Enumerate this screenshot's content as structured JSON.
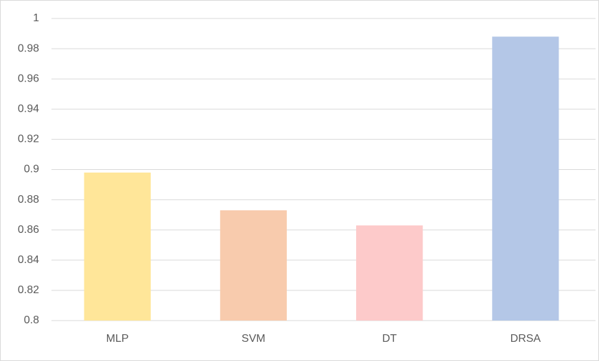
{
  "chart_data": {
    "type": "bar",
    "categories": [
      "MLP",
      "SVM",
      "DT",
      "DRSA"
    ],
    "values": [
      0.898,
      0.873,
      0.863,
      0.988
    ],
    "colors": [
      "#ffe699",
      "#f8cbad",
      "#fdcaca",
      "#b4c7e7"
    ],
    "ylim": [
      0.8,
      1
    ],
    "yticks": [
      0.8,
      0.82,
      0.84,
      0.86,
      0.88,
      0.9,
      0.92,
      0.94,
      0.96,
      0.98,
      1
    ],
    "grid": true
  }
}
